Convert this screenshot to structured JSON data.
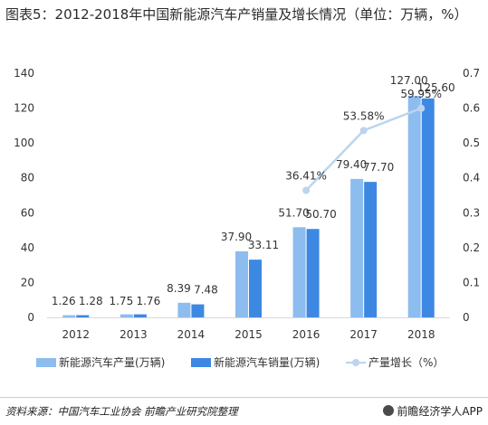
{
  "title": "图表5：2012-2018年中国新能源汽车产销量及增长情况（单位：万辆，%）",
  "source": "资料来源：中国汽车工业协会 前瞻产业研究院整理",
  "brand": "前瞻经济学人APP",
  "colors": {
    "production": "#8dbcef",
    "sales": "#3d88e2",
    "growth": "#bcd4ee",
    "axis": "#d9d9d9",
    "text": "#333333"
  },
  "chart_data": {
    "type": "bar",
    "categories": [
      "2012",
      "2013",
      "2014",
      "2015",
      "2016",
      "2017",
      "2018"
    ],
    "ylim": [
      0,
      140
    ],
    "yticks": [
      0,
      20,
      40,
      60,
      80,
      100,
      120,
      140
    ],
    "y2lim": [
      0,
      0.7
    ],
    "y2ticks": [
      "0",
      "0.1",
      "0.2",
      "0.3",
      "0.4",
      "0.5",
      "0.6",
      "0.7"
    ],
    "series": [
      {
        "name": "新能源汽车产量(万辆)",
        "type": "bar",
        "axis": "left",
        "values": [
          1.26,
          1.75,
          8.39,
          37.9,
          51.7,
          79.4,
          127.0
        ],
        "labels": [
          "1.26",
          "1.75",
          "8.39",
          "37.90",
          "51.70",
          "79.40",
          "127.00"
        ]
      },
      {
        "name": "新能源汽车销量(万辆)",
        "type": "bar",
        "axis": "left",
        "values": [
          1.28,
          1.76,
          7.48,
          33.11,
          50.7,
          77.7,
          125.6
        ],
        "labels": [
          "1.28",
          "1.76",
          "7.48",
          "33.11",
          "50.70",
          "77.70",
          "125.60"
        ]
      },
      {
        "name": "产量增长（%）",
        "type": "line",
        "axis": "right",
        "points": [
          {
            "category": "2016",
            "value": 0.3641,
            "label": "36.41%"
          },
          {
            "category": "2017",
            "value": 0.5358,
            "label": "53.58%"
          },
          {
            "category": "2018",
            "value": 0.5995,
            "label": "59.95%"
          }
        ]
      }
    ],
    "legend": "bottom"
  }
}
